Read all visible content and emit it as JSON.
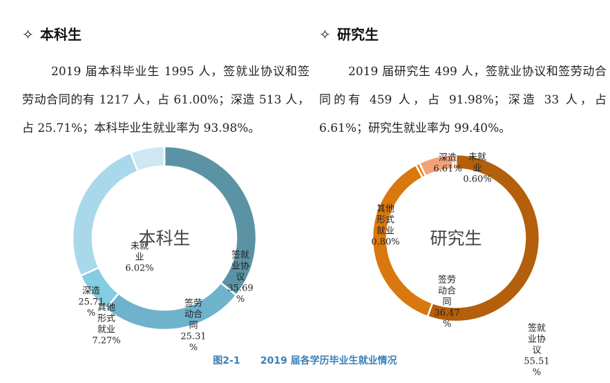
{
  "sections": {
    "undergrad": {
      "symbol": "✧",
      "title": "本科生",
      "paragraph": "2019 届本科毕业生 1995 人，签就业协议和签劳动合同的有 1217 人，占 61.00%；深造 513 人，占 25.71%；本科毕业生就业率为 93.98%。"
    },
    "graduate": {
      "symbol": "✧",
      "title": "研究生",
      "paragraph": "2019 届研究生 499 人，签就业协议和签劳动合同的有 459 人，占 91.98%；深造 33 人，占 6.61%；研究生就业率为 99.40%。"
    }
  },
  "caption": "图2-1      2019 届各学历毕业生就业情况",
  "chart_data": [
    {
      "type": "pie",
      "donut": true,
      "center_label": "本科生",
      "slices": [
        {
          "label": "签就业协议",
          "value": 35.69,
          "color": "#5b93a5",
          "label_lines": [
            "签就",
            "业协",
            "议",
            "35.69",
            "%"
          ]
        },
        {
          "label": "签劳动合同",
          "value": 25.31,
          "color": "#6fb2cc",
          "label_lines": [
            "签劳",
            "动合",
            "同",
            "25.31",
            "%"
          ]
        },
        {
          "label": "其他形式就业",
          "value": 7.27,
          "color": "#86cce0",
          "label_lines": [
            "其他",
            "形式",
            "就业",
            "7.27%"
          ]
        },
        {
          "label": "深造",
          "value": 25.71,
          "color": "#a8d8ea",
          "label_lines": [
            "深造",
            "25.71",
            "%"
          ]
        },
        {
          "label": "未就业",
          "value": 6.02,
          "color": "#cde8f2",
          "label_lines": [
            "未就",
            "业",
            "6.02%"
          ]
        }
      ]
    },
    {
      "type": "pie",
      "donut": true,
      "center_label": "研究生",
      "slices": [
        {
          "label": "签就业协议",
          "value": 55.51,
          "color": "#b35f0b",
          "label_lines": [
            "签就",
            "业协",
            "议",
            "55.51",
            "%"
          ]
        },
        {
          "label": "签劳动合同",
          "value": 36.47,
          "color": "#d9780e",
          "label_lines": [
            "签劳",
            "动合",
            "同",
            "36.47",
            "%"
          ]
        },
        {
          "label": "其他形式就业",
          "value": 0.8,
          "color": "#f0891a",
          "label_lines": [
            "其他",
            "形式",
            "就业",
            "0.80%"
          ]
        },
        {
          "label": "深造",
          "value": 6.61,
          "color": "#f2a27a",
          "label_lines": [
            "深造",
            "6.61%"
          ]
        },
        {
          "label": "未就业",
          "value": 0.6,
          "color": "#f7c9a8",
          "label_lines": [
            "未就",
            "业",
            "0.60%"
          ]
        }
      ]
    }
  ]
}
